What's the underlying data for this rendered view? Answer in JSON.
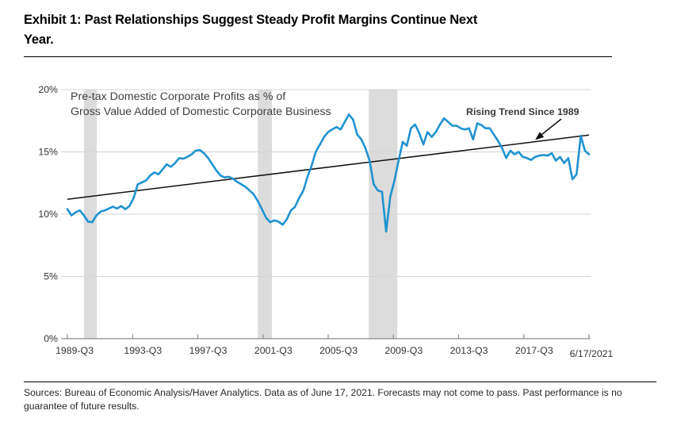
{
  "exhibit": {
    "title_line1": "Exhibit 1: Past Relationships Suggest Steady Profit Margins Continue Next",
    "title_line2": "Year."
  },
  "chart_data": {
    "type": "line",
    "series_label_line1": "Pre-tax Domestic Corporate Profits as % of",
    "series_label_line2": "Gross Value Added of Domestic Corporate Business",
    "x_unit": "quarter",
    "x_start": "1989-Q3",
    "x_end": "2021-Q1",
    "x_tick_labels": [
      "1989-Q3",
      "1993-Q3",
      "1997-Q3",
      "2001-Q3",
      "2005-Q3",
      "2009-Q3",
      "2013-Q3",
      "2017-Q3"
    ],
    "x_end_label": "6/17/2021",
    "y_tick_labels": [
      "0%",
      "5%",
      "10%",
      "15%",
      "20%"
    ],
    "y_tick_values": [
      0,
      5,
      10,
      15,
      20
    ],
    "ylim": [
      0,
      20
    ],
    "grid": true,
    "values": [
      10.4,
      9.9,
      10.15,
      10.3,
      9.9,
      9.4,
      9.35,
      9.9,
      10.2,
      10.3,
      10.45,
      10.6,
      10.45,
      10.65,
      10.4,
      10.65,
      11.3,
      12.4,
      12.55,
      12.7,
      13.1,
      13.35,
      13.2,
      13.6,
      14.0,
      13.8,
      14.1,
      14.5,
      14.45,
      14.6,
      14.8,
      15.1,
      15.15,
      14.9,
      14.5,
      14.0,
      13.5,
      13.1,
      12.95,
      13.0,
      12.85,
      12.6,
      12.4,
      12.2,
      11.9,
      11.6,
      11.05,
      10.4,
      9.7,
      9.35,
      9.5,
      9.4,
      9.15,
      9.6,
      10.3,
      10.6,
      11.3,
      11.9,
      13.0,
      13.9,
      15.0,
      15.6,
      16.2,
      16.6,
      16.8,
      17.0,
      16.8,
      17.4,
      18.0,
      17.6,
      16.4,
      16.0,
      15.3,
      14.3,
      12.4,
      11.9,
      11.8,
      8.6,
      11.4,
      12.7,
      14.3,
      15.8,
      15.5,
      16.9,
      17.2,
      16.5,
      15.6,
      16.6,
      16.2,
      16.6,
      17.2,
      17.7,
      17.4,
      17.1,
      17.1,
      16.9,
      16.8,
      16.9,
      16.0,
      17.3,
      17.15,
      16.9,
      16.9,
      16.4,
      15.9,
      15.3,
      14.5,
      15.1,
      14.8,
      15.0,
      14.6,
      14.5,
      14.35,
      14.6,
      14.7,
      14.75,
      14.7,
      14.9,
      14.3,
      14.6,
      14.1,
      14.5,
      12.8,
      13.2,
      16.3,
      15.1,
      14.8
    ],
    "trend_line": {
      "label": "Rising Trend Since 1989",
      "start_value": 11.2,
      "end_value": 16.35
    },
    "recession_bands_quarter_index": [
      [
        4,
        7.1
      ],
      [
        46,
        49.4
      ],
      [
        72.8,
        79.7
      ]
    ],
    "colors": {
      "series_line": "#1f93d1",
      "trend_line": "#111111",
      "recession_band": "#dcdcdc",
      "gridline": "#d4d4d4",
      "axis": "#8c8c8c",
      "label_text": "#333333"
    }
  },
  "footer": {
    "line1": "Sources: Bureau of Economic Analysis/Haver Analytics. Data as of June 17, 2021.  Forecasts may not come to pass. Past performance is no",
    "line2": "guarantee of future results."
  }
}
